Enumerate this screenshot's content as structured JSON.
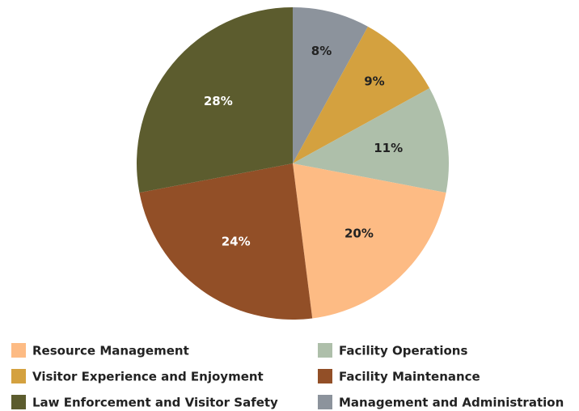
{
  "chart_data": {
    "type": "pie",
    "categories": [
      "Management and Administration",
      "Visitor Experience and Enjoyment",
      "Facility Operations",
      "Resource Management",
      "Facility Maintenance",
      "Law Enforcement and Visitor Safety"
    ],
    "values": [
      8,
      9,
      11,
      20,
      24,
      28
    ],
    "value_labels": [
      "8%",
      "9%",
      "11%",
      "20%",
      "24%",
      "28%"
    ],
    "colors": [
      "#8c939c",
      "#d4a13f",
      "#aebfaa",
      "#fdbb84",
      "#924f27",
      "#5c5c2e"
    ]
  }
}
